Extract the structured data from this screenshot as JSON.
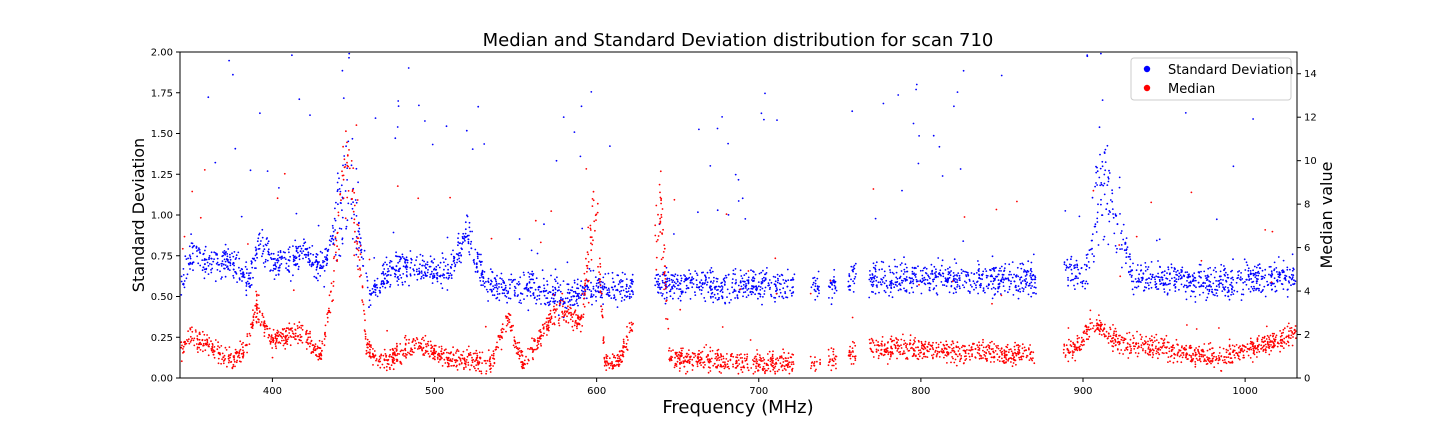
{
  "chart_data": {
    "type": "scatter",
    "title": "Median and Standard Deviation distribution for scan 710",
    "xlabel": "Frequency (MHz)",
    "ylabel": "Standard Deviation",
    "ylabel_right": "Median value",
    "xlim": [
      343,
      1032
    ],
    "ylim": [
      0,
      2.0
    ],
    "ylim_right": [
      0,
      15
    ],
    "x_ticks": [
      400,
      500,
      600,
      700,
      800,
      900,
      1000
    ],
    "y_ticks": [
      "0.00",
      "0.25",
      "0.50",
      "0.75",
      "1.00",
      "1.25",
      "1.50",
      "1.75",
      "2.00"
    ],
    "y_ticks_right": [
      "0",
      "2",
      "4",
      "6",
      "8",
      "10",
      "12",
      "14"
    ],
    "legend_position": "top-right",
    "series": [
      {
        "name": "Standard Deviation",
        "color": "#0000ff",
        "axis": "left",
        "baseline": [
          [
            343,
            0.55
          ],
          [
            350,
            0.78
          ],
          [
            360,
            0.7
          ],
          [
            375,
            0.72
          ],
          [
            385,
            0.6
          ],
          [
            392,
            0.82
          ],
          [
            400,
            0.7
          ],
          [
            410,
            0.72
          ],
          [
            420,
            0.78
          ],
          [
            430,
            0.65
          ],
          [
            437,
            0.85
          ],
          [
            445,
            1.15
          ],
          [
            452,
            0.95
          ],
          [
            460,
            0.5
          ],
          [
            470,
            0.62
          ],
          [
            480,
            0.68
          ],
          [
            490,
            0.66
          ],
          [
            500,
            0.65
          ],
          [
            510,
            0.65
          ],
          [
            520,
            0.9
          ],
          [
            530,
            0.62
          ],
          [
            540,
            0.55
          ],
          [
            560,
            0.55
          ],
          [
            580,
            0.5
          ],
          [
            595,
            0.55
          ],
          [
            600,
            0.55
          ],
          [
            615,
            0.55
          ],
          [
            640,
            0.58
          ],
          [
            700,
            0.56
          ],
          [
            720,
            0.56
          ],
          [
            740,
            0.56
          ],
          [
            760,
            0.62
          ],
          [
            770,
            0.6
          ],
          [
            800,
            0.62
          ],
          [
            840,
            0.61
          ],
          [
            870,
            0.6
          ],
          [
            890,
            0.65
          ],
          [
            900,
            0.62
          ],
          [
            905,
            0.75
          ],
          [
            910,
            1.25
          ],
          [
            920,
            1.0
          ],
          [
            925,
            0.9
          ],
          [
            930,
            0.63
          ],
          [
            960,
            0.6
          ],
          [
            990,
            0.58
          ],
          [
            1000,
            0.6
          ],
          [
            1032,
            0.62
          ]
        ]
      },
      {
        "name": "Median",
        "color": "#ff0000",
        "axis": "right",
        "baseline": [
          [
            343,
            1.2
          ],
          [
            350,
            2.0
          ],
          [
            360,
            1.5
          ],
          [
            375,
            0.8
          ],
          [
            385,
            1.5
          ],
          [
            390,
            3.3
          ],
          [
            395,
            2.5
          ],
          [
            400,
            1.6
          ],
          [
            410,
            2.0
          ],
          [
            420,
            2.0
          ],
          [
            430,
            1.0
          ],
          [
            437,
            4.0
          ],
          [
            445,
            10.0
          ],
          [
            452,
            7.0
          ],
          [
            458,
            1.5
          ],
          [
            465,
            0.6
          ],
          [
            475,
            1.0
          ],
          [
            485,
            1.5
          ],
          [
            495,
            1.3
          ],
          [
            505,
            1.0
          ],
          [
            515,
            0.9
          ],
          [
            525,
            0.8
          ],
          [
            535,
            0.7
          ],
          [
            545,
            2.8
          ],
          [
            555,
            0.6
          ],
          [
            575,
            3.2
          ],
          [
            590,
            2.6
          ],
          [
            600,
            8.0
          ],
          [
            605,
            0.7
          ],
          [
            615,
            0.8
          ],
          [
            640,
            7.5
          ],
          [
            645,
            0.9
          ],
          [
            700,
            0.7
          ],
          [
            720,
            0.7
          ],
          [
            740,
            0.8
          ],
          [
            760,
            1.2
          ],
          [
            770,
            1.4
          ],
          [
            800,
            1.35
          ],
          [
            840,
            1.1
          ],
          [
            870,
            1.1
          ],
          [
            895,
            1.3
          ],
          [
            900,
            1.8
          ],
          [
            905,
            2.5
          ],
          [
            910,
            2.4
          ],
          [
            920,
            1.7
          ],
          [
            960,
            1.2
          ],
          [
            985,
            0.9
          ],
          [
            1000,
            1.3
          ],
          [
            1032,
            2.0
          ]
        ]
      }
    ],
    "gaps_mhz": [
      [
        623,
        636
      ],
      [
        722,
        732
      ],
      [
        738,
        743
      ],
      [
        748,
        755
      ],
      [
        760,
        768
      ],
      [
        871,
        888
      ]
    ]
  }
}
